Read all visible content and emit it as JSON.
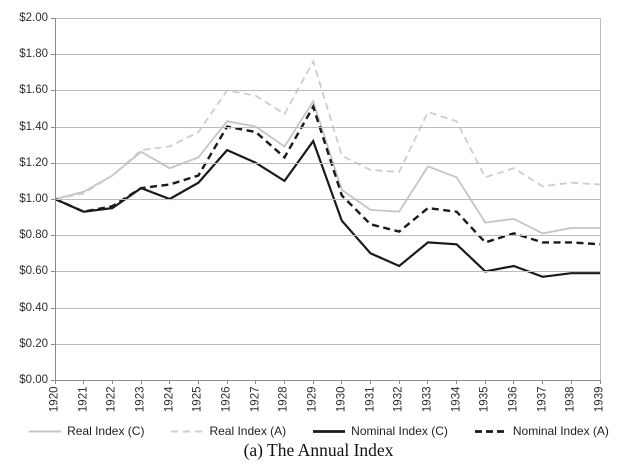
{
  "figure": {
    "caption": "(a) The Annual Index"
  },
  "chart_data": {
    "type": "line",
    "title": "",
    "xlabel": "",
    "ylabel": "",
    "ylim": [
      0,
      2
    ],
    "ytick_step": 0.2,
    "ytick_labels": [
      "$2.00",
      "$1.80",
      "$1.60",
      "$1.40",
      "$1.20",
      "$1.00",
      "$0.80",
      "$0.60",
      "$0.40",
      "$0.20",
      "$0.00"
    ],
    "x": [
      "1920",
      "1921",
      "1922",
      "1923",
      "1924",
      "1925",
      "1926",
      "1927",
      "1928",
      "1929",
      "1930",
      "1931",
      "1932",
      "1933",
      "1934",
      "1935",
      "1936",
      "1937",
      "1938",
      "1939"
    ],
    "grid": true,
    "legend_position": "bottom",
    "series": [
      {
        "name": "Real Index (C)",
        "color": "#c5c5c5",
        "dashed": false,
        "values": [
          1.0,
          1.04,
          1.13,
          1.26,
          1.17,
          1.23,
          1.43,
          1.4,
          1.29,
          1.54,
          1.05,
          0.94,
          0.93,
          1.18,
          1.12,
          0.87,
          0.89,
          0.81,
          0.84,
          0.84
        ]
      },
      {
        "name": "Real Index (A)",
        "color": "#cdcdcd",
        "dashed": true,
        "values": [
          1.0,
          1.03,
          1.13,
          1.27,
          1.29,
          1.37,
          1.6,
          1.57,
          1.47,
          1.76,
          1.24,
          1.16,
          1.15,
          1.48,
          1.43,
          1.12,
          1.17,
          1.07,
          1.09,
          1.08
        ]
      },
      {
        "name": "Nominal Index (C)",
        "color": "#1a1a1a",
        "dashed": false,
        "values": [
          1.0,
          0.93,
          0.95,
          1.06,
          1.0,
          1.09,
          1.27,
          1.2,
          1.1,
          1.32,
          0.88,
          0.7,
          0.63,
          0.76,
          0.75,
          0.6,
          0.63,
          0.57,
          0.59,
          0.59
        ]
      },
      {
        "name": "Nominal Index (A)",
        "color": "#1a1a1a",
        "dashed": true,
        "values": [
          1.0,
          0.93,
          0.96,
          1.06,
          1.08,
          1.13,
          1.4,
          1.37,
          1.23,
          1.51,
          1.02,
          0.86,
          0.82,
          0.95,
          0.93,
          0.76,
          0.81,
          0.76,
          0.76,
          0.75
        ]
      }
    ]
  }
}
